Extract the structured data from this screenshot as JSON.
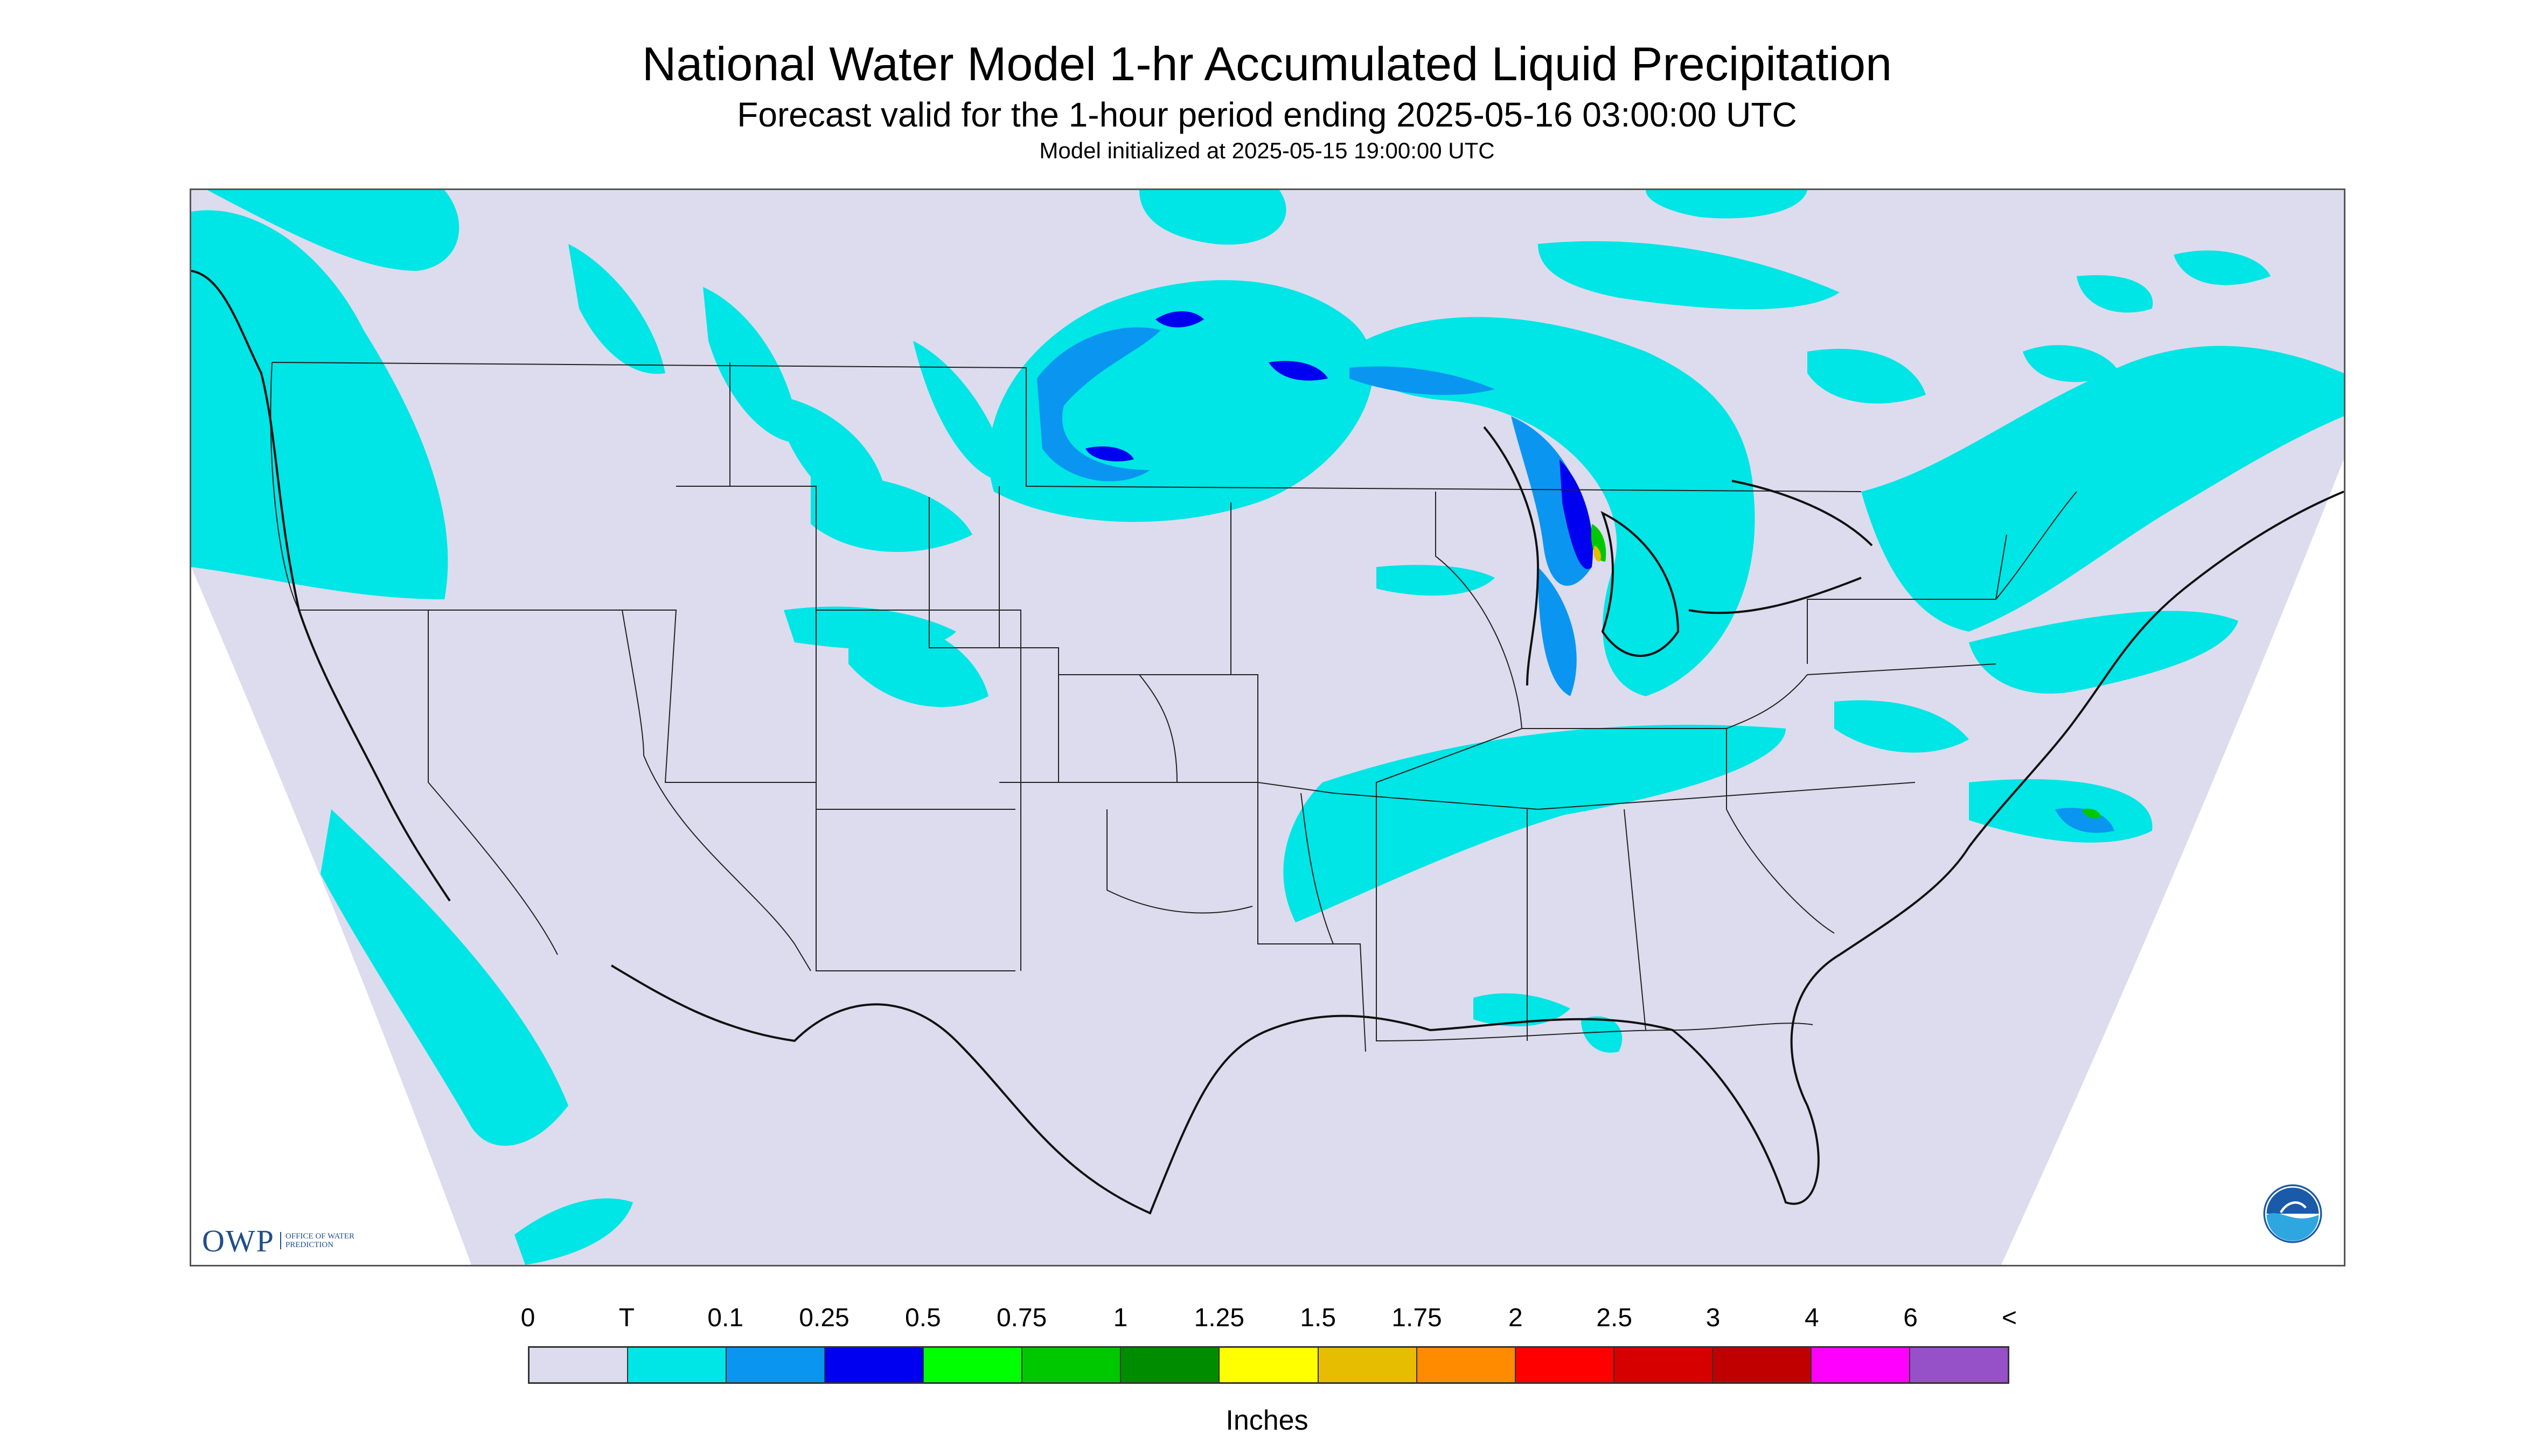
{
  "header": {
    "title": "National Water Model 1-hr Accumulated Liquid Precipitation",
    "subtitle": "Forecast valid for the 1-hour period ending 2025-05-16 03:00:00 UTC",
    "init_line": "Model initialized at 2025-05-15 19:00:00 UTC"
  },
  "map": {
    "background_color": "#dcdcee",
    "light_precip_color": "#00e5e5",
    "mid_precip_color": "#0a96f0",
    "heavy_precip_color": "#0000f0",
    "border_color": "#222222"
  },
  "logos": {
    "owp_text": "OWP",
    "owp_subtext": "Office of Water Prediction",
    "noaa_icon": "noaa-logo-icon"
  },
  "legend": {
    "labels": [
      "0",
      "T",
      "0.1",
      "0.25",
      "0.5",
      "0.75",
      "1",
      "1.25",
      "1.5",
      "1.75",
      "2",
      "2.5",
      "3",
      "4",
      "6",
      "<"
    ],
    "colors": [
      "#dcdcee",
      "#00e5e5",
      "#0a96f0",
      "#0000f0",
      "#00ff00",
      "#00c800",
      "#008c00",
      "#ffff00",
      "#e6bd00",
      "#ff8c00",
      "#ff0000",
      "#d70000",
      "#c00000",
      "#ff00ff",
      "#9650c8"
    ],
    "units": "Inches"
  }
}
